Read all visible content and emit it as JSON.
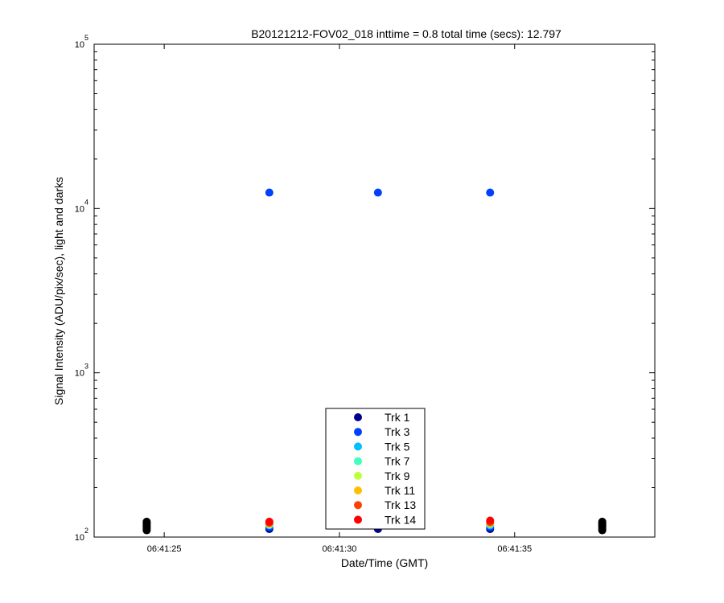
{
  "chart_data": {
    "type": "scatter",
    "title": "B20121212-FOV02_018 inttime = 0.8 total time (secs): 12.797",
    "xlabel": "Date/Time (GMT)",
    "ylabel": "Signal Intensity (ADU/pix/sec), light and darks",
    "y_scale": "log",
    "xlim": [
      "06:41:23",
      "06:41:39"
    ],
    "ylim": [
      100,
      100000
    ],
    "x_ticks": [
      "06:41:25",
      "06:41:30",
      "06:41:35"
    ],
    "y_ticks": [
      {
        "base": "10",
        "exp": "2"
      },
      {
        "base": "10",
        "exp": "3"
      },
      {
        "base": "10",
        "exp": "4"
      },
      {
        "base": "10",
        "exp": "5"
      }
    ],
    "grid": false,
    "legend_position": "bottom-center",
    "series": [
      {
        "name": "Trk 1",
        "color": "#00008f",
        "points": [
          [
            "06:41:28.0",
            112
          ],
          [
            "06:41:31.1",
            112
          ],
          [
            "06:41:34.3",
            112
          ]
        ]
      },
      {
        "name": "Trk 3",
        "color": "#0040ff",
        "points": [
          [
            "06:41:28.0",
            12500
          ],
          [
            "06:41:31.1",
            12500
          ],
          [
            "06:41:34.3",
            12500
          ],
          [
            "06:41:28.0",
            115
          ],
          [
            "06:41:34.3",
            115
          ]
        ]
      },
      {
        "name": "Trk 5",
        "color": "#00bfff",
        "points": [
          [
            "06:41:28.0",
            118
          ],
          [
            "06:41:34.3",
            118
          ]
        ]
      },
      {
        "name": "Trk 7",
        "color": "#40ffbf",
        "points": [
          [
            "06:41:28.0",
            119
          ],
          [
            "06:41:34.3",
            120
          ]
        ]
      },
      {
        "name": "Trk 9",
        "color": "#bfff40",
        "points": [
          [
            "06:41:28.0",
            120
          ],
          [
            "06:41:34.3",
            121
          ]
        ]
      },
      {
        "name": "Trk 11",
        "color": "#ffbf00",
        "points": [
          [
            "06:41:28.0",
            121
          ],
          [
            "06:41:34.3",
            122
          ]
        ]
      },
      {
        "name": "Trk 13",
        "color": "#ff4000",
        "points": [
          [
            "06:41:28.0",
            122
          ],
          [
            "06:41:34.3",
            123
          ]
        ]
      },
      {
        "name": "Trk 14",
        "color": "#ff0000",
        "points": [
          [
            "06:41:28.0",
            124
          ],
          [
            "06:41:34.3",
            126
          ]
        ]
      },
      {
        "name": "",
        "color": "#000000",
        "points": [
          [
            "06:41:24.5",
            110
          ],
          [
            "06:41:24.5",
            112
          ],
          [
            "06:41:24.5",
            114
          ],
          [
            "06:41:24.5",
            116
          ],
          [
            "06:41:24.5",
            118
          ],
          [
            "06:41:24.5",
            120
          ],
          [
            "06:41:24.5",
            122
          ],
          [
            "06:41:24.5",
            124
          ],
          [
            "06:41:37.5",
            110
          ],
          [
            "06:41:37.5",
            112
          ],
          [
            "06:41:37.5",
            114
          ],
          [
            "06:41:37.5",
            116
          ],
          [
            "06:41:37.5",
            118
          ],
          [
            "06:41:37.5",
            120
          ],
          [
            "06:41:37.5",
            122
          ],
          [
            "06:41:37.5",
            124
          ]
        ]
      }
    ]
  }
}
